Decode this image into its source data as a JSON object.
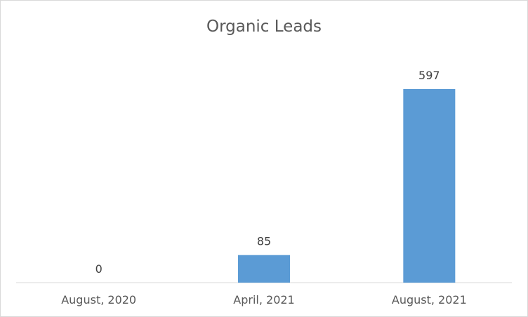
{
  "chart_data": {
    "type": "bar",
    "title": "Organic Leads",
    "categories": [
      "August, 2020",
      "April, 2021",
      "August, 2021"
    ],
    "values": [
      0,
      85,
      597
    ],
    "data_labels": [
      "0",
      "85",
      "597"
    ],
    "xlabel": "",
    "ylabel": "",
    "ylim": [
      0,
      597
    ],
    "grid": false,
    "legend": "none",
    "bar_color": "#5b9bd5",
    "axis_color": "#d9d9d9"
  }
}
